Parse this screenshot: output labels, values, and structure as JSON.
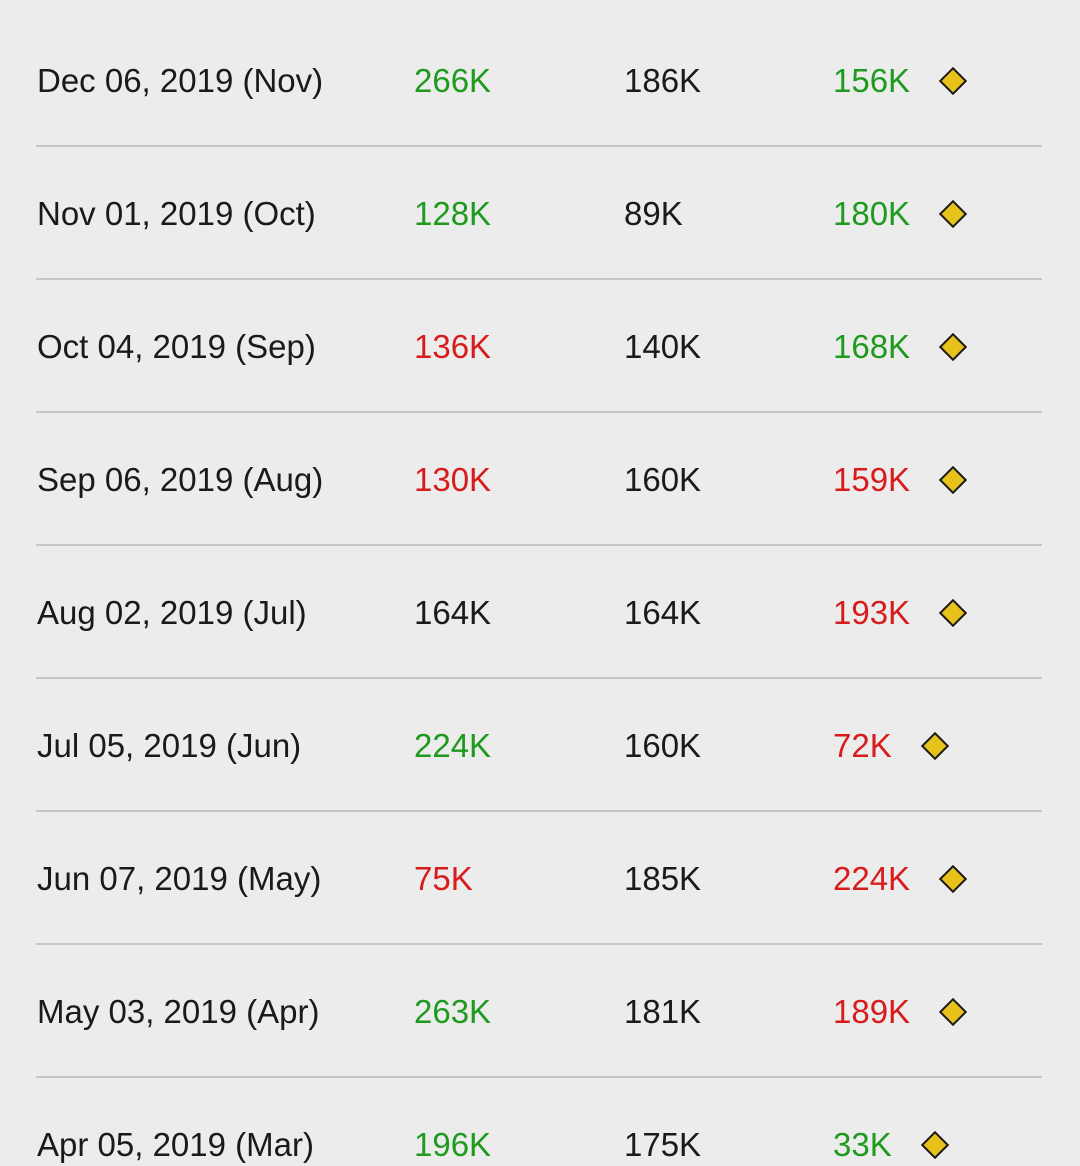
{
  "colors": {
    "positive": "#1e9a1e",
    "negative": "#d81b1b",
    "neutral": "#1a1a1a",
    "impact_icon": "#e6c21a",
    "background": "#ececec",
    "divider": "#c6c6c6"
  },
  "rows": [
    {
      "date": "Dec 06, 2019 (Nov)",
      "actual": "266K",
      "actual_status": "green",
      "forecast": "186K",
      "previous": "156K",
      "previous_status": "green",
      "icon": "diamond-icon"
    },
    {
      "date": "Nov 01, 2019 (Oct)",
      "actual": "128K",
      "actual_status": "green",
      "forecast": "89K",
      "previous": "180K",
      "previous_status": "green",
      "icon": "diamond-icon"
    },
    {
      "date": "Oct 04, 2019 (Sep)",
      "actual": "136K",
      "actual_status": "red",
      "forecast": "140K",
      "previous": "168K",
      "previous_status": "green",
      "icon": "diamond-icon"
    },
    {
      "date": "Sep 06, 2019 (Aug)",
      "actual": "130K",
      "actual_status": "red",
      "forecast": "160K",
      "previous": "159K",
      "previous_status": "red",
      "icon": "diamond-icon"
    },
    {
      "date": "Aug 02, 2019 (Jul)",
      "actual": "164K",
      "actual_status": "neutral",
      "forecast": "164K",
      "previous": "193K",
      "previous_status": "red",
      "icon": "diamond-icon"
    },
    {
      "date": "Jul 05, 2019 (Jun)",
      "actual": "224K",
      "actual_status": "green",
      "forecast": "160K",
      "previous": "72K",
      "previous_status": "red",
      "icon": "diamond-icon"
    },
    {
      "date": "Jun 07, 2019 (May)",
      "actual": "75K",
      "actual_status": "red",
      "forecast": "185K",
      "previous": "224K",
      "previous_status": "red",
      "icon": "diamond-icon"
    },
    {
      "date": "May 03, 2019 (Apr)",
      "actual": "263K",
      "actual_status": "green",
      "forecast": "181K",
      "previous": "189K",
      "previous_status": "red",
      "icon": "diamond-icon"
    },
    {
      "date": "Apr 05, 2019 (Mar)",
      "actual": "196K",
      "actual_status": "green",
      "forecast": "175K",
      "previous": "33K",
      "previous_status": "green",
      "icon": "diamond-icon"
    }
  ]
}
